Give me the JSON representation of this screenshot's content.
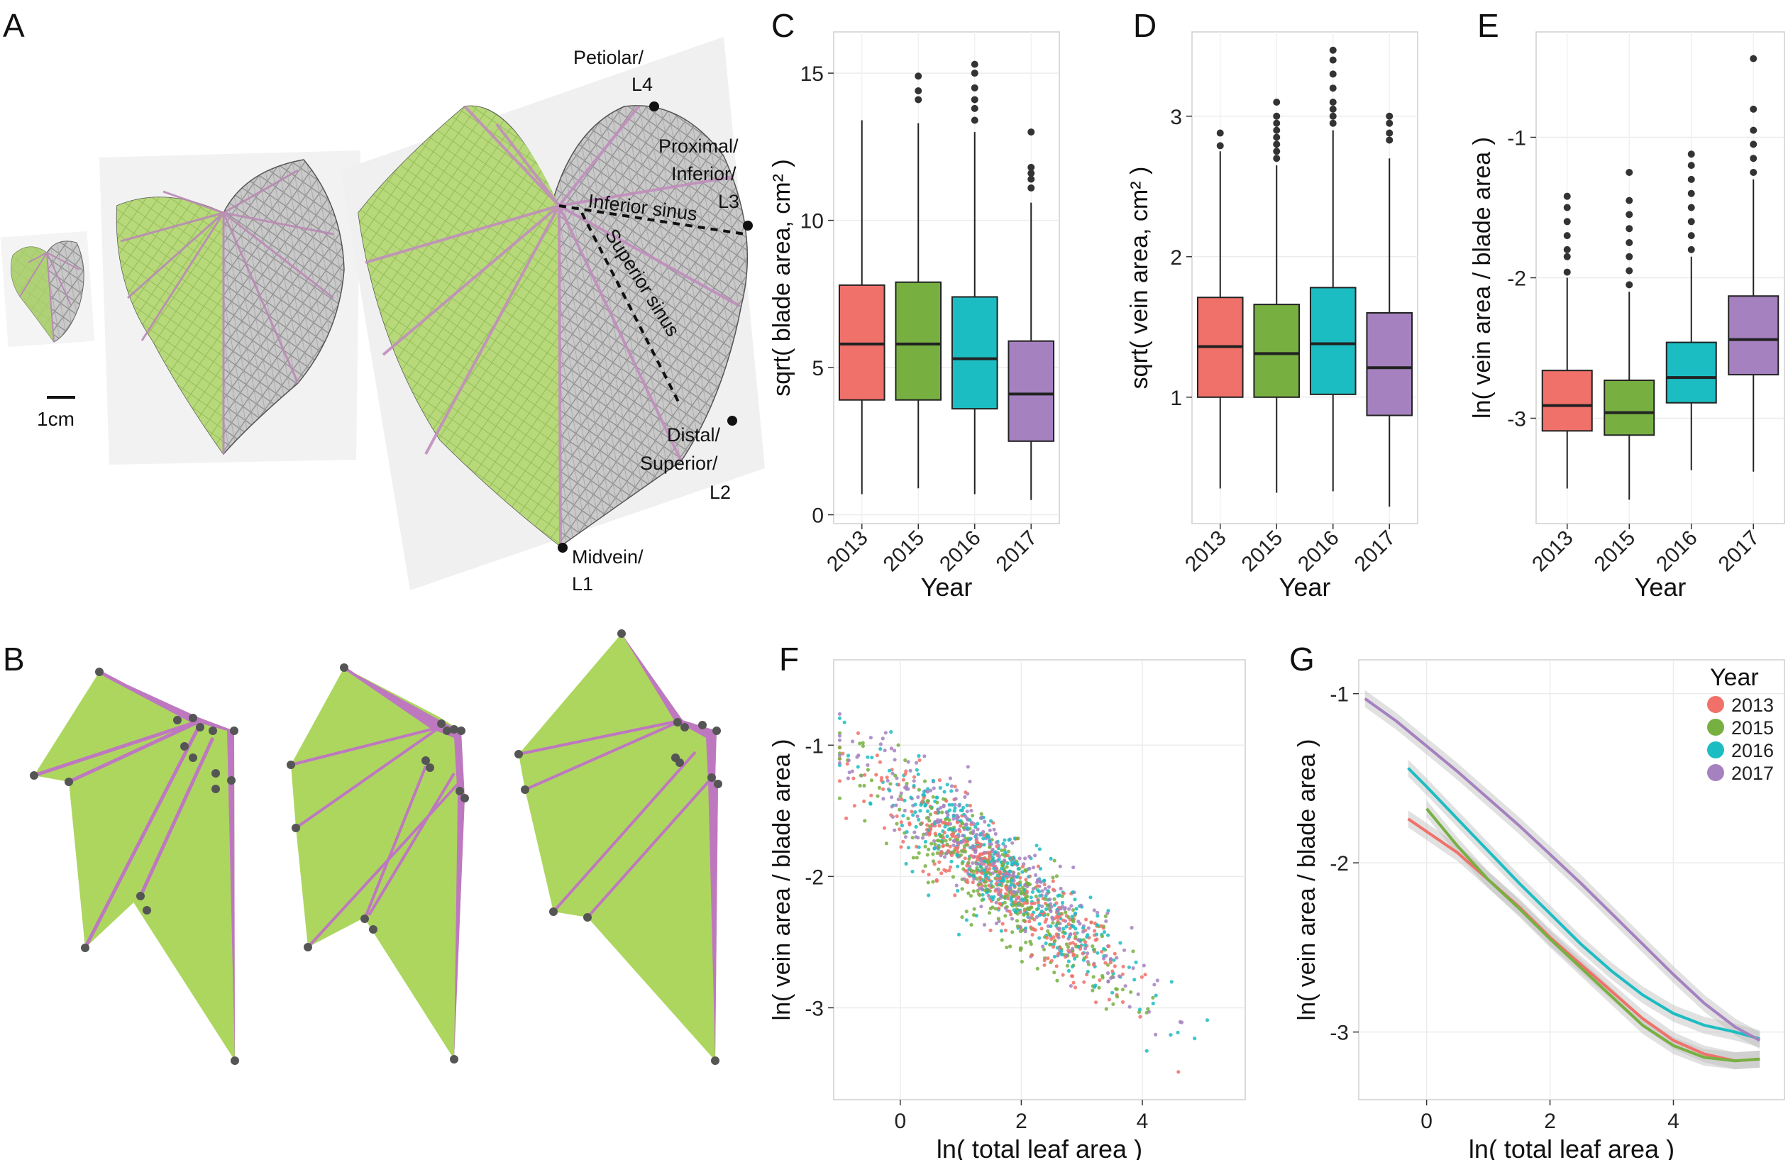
{
  "panel_labels": {
    "A": "A",
    "B": "B",
    "C": "C",
    "D": "D",
    "E": "E",
    "F": "F",
    "G": "G"
  },
  "panel_a": {
    "scale_bar_label": "1cm",
    "annotations": {
      "petiolar_1": "Petiolar/",
      "petiolar_2": "L4",
      "proximal_1": "Proximal/",
      "proximal_2": "Inferior/",
      "proximal_3": "L3",
      "distal_1": "Distal/",
      "distal_2": "Superior/",
      "distal_3": "L2",
      "midvein_1": "Midvein/",
      "midvein_2": "L1",
      "inferior_sinus": "Inferior sinus",
      "superior_sinus": "Superior sinus"
    }
  },
  "colors": {
    "y2013": "#F0716A",
    "y2015": "#77B041",
    "y2016": "#1CBDC2",
    "y2017": "#A581C0",
    "leaf_green": "#ADD65F",
    "vein_purple": "#BE78C0",
    "landmark": "#555555"
  },
  "chart_data": [
    {
      "panel": "C",
      "type": "box",
      "categories": [
        "2013",
        "2015",
        "2016",
        "2017"
      ],
      "xlabel": "Year",
      "ylabel": "sqrt( blade area, cm² )",
      "ylim": [
        -0.3,
        16.4
      ],
      "yticks": [
        0,
        5,
        10,
        15
      ],
      "ytick_labels": [
        "0",
        "5",
        "10",
        "15"
      ],
      "boxes": [
        {
          "min": 0.7,
          "q1": 3.9,
          "median": 5.8,
          "q3": 7.8,
          "max": 13.4,
          "outliers": []
        },
        {
          "min": 0.9,
          "q1": 3.9,
          "median": 5.8,
          "q3": 7.9,
          "max": 13.3,
          "outliers": [
            14.1,
            14.4,
            14.9
          ]
        },
        {
          "min": 0.7,
          "q1": 3.6,
          "median": 5.3,
          "q3": 7.4,
          "max": 13.0,
          "outliers": [
            13.4,
            13.8,
            14.1,
            14.5,
            15.0,
            15.3
          ]
        },
        {
          "min": 0.5,
          "q1": 2.5,
          "median": 4.1,
          "q3": 5.9,
          "max": 10.6,
          "outliers": [
            11.1,
            11.4,
            11.6,
            11.8,
            13.0
          ]
        }
      ]
    },
    {
      "panel": "D",
      "type": "box",
      "categories": [
        "2013",
        "2015",
        "2016",
        "2017"
      ],
      "xlabel": "Year",
      "ylabel": "sqrt( vein area, cm² )",
      "ylim": [
        0.1,
        3.6
      ],
      "yticks": [
        1,
        2,
        3
      ],
      "ytick_labels": [
        "1",
        "2",
        "3"
      ],
      "boxes": [
        {
          "min": 0.35,
          "q1": 1.0,
          "median": 1.36,
          "q3": 1.71,
          "max": 2.75,
          "outliers": [
            2.79,
            2.88
          ]
        },
        {
          "min": 0.32,
          "q1": 1.0,
          "median": 1.31,
          "q3": 1.66,
          "max": 2.65,
          "outliers": [
            2.7,
            2.75,
            2.8,
            2.85,
            2.9,
            2.95,
            3.0,
            3.1
          ]
        },
        {
          "min": 0.33,
          "q1": 1.02,
          "median": 1.38,
          "q3": 1.78,
          "max": 2.9,
          "outliers": [
            2.95,
            3.0,
            3.05,
            3.1,
            3.2,
            3.3,
            3.4,
            3.47
          ]
        },
        {
          "min": 0.22,
          "q1": 0.87,
          "median": 1.21,
          "q3": 1.6,
          "max": 2.7,
          "outliers": [
            2.83,
            2.88,
            2.95,
            3.0
          ]
        }
      ]
    },
    {
      "panel": "E",
      "type": "box",
      "categories": [
        "2013",
        "2015",
        "2016",
        "2017"
      ],
      "xlabel": "Year",
      "ylabel": "ln( vein area / blade area )",
      "ylim": [
        -3.75,
        -0.25
      ],
      "yticks": [
        -3,
        -2,
        -1
      ],
      "ytick_labels": [
        "-3",
        "-2",
        "-1"
      ],
      "boxes": [
        {
          "min": -3.5,
          "q1": -3.09,
          "median": -2.91,
          "q3": -2.66,
          "max": -2.0,
          "outliers": [
            -1.96,
            -1.85,
            -1.8,
            -1.7,
            -1.6,
            -1.5,
            -1.42
          ]
        },
        {
          "min": -3.58,
          "q1": -3.12,
          "median": -2.96,
          "q3": -2.73,
          "max": -2.1,
          "outliers": [
            -2.05,
            -1.95,
            -1.85,
            -1.75,
            -1.65,
            -1.55,
            -1.45,
            -1.25
          ]
        },
        {
          "min": -3.37,
          "q1": -2.89,
          "median": -2.71,
          "q3": -2.46,
          "max": -1.85,
          "outliers": [
            -1.8,
            -1.7,
            -1.6,
            -1.5,
            -1.4,
            -1.3,
            -1.2,
            -1.12
          ]
        },
        {
          "min": -3.38,
          "q1": -2.69,
          "median": -2.44,
          "q3": -2.13,
          "max": -1.3,
          "outliers": [
            -1.25,
            -1.15,
            -1.05,
            -0.95,
            -0.8,
            -0.44
          ]
        }
      ]
    },
    {
      "panel": "F",
      "type": "scatter",
      "xlabel": "ln( total leaf area )",
      "ylabel": "ln( vein area / blade area )",
      "xlim": [
        -1.1,
        5.7
      ],
      "ylim": [
        -3.7,
        -0.35
      ],
      "xticks": [
        0,
        2,
        4
      ],
      "xtick_labels": [
        "0",
        "2",
        "4"
      ],
      "yticks": [
        -3,
        -2,
        -1
      ],
      "ytick_labels": [
        "-3",
        "-2",
        "-1"
      ],
      "series_order": [
        "2013",
        "2015",
        "2016",
        "2017"
      ],
      "relationship": {
        "x_range": [
          -1,
          5.4
        ],
        "slope": -0.37,
        "intercept": -1.4,
        "spread_sd": 0.18
      }
    },
    {
      "panel": "G",
      "type": "line",
      "xlabel": "ln( total leaf area )",
      "ylabel": "ln( vein area / blade area )",
      "xlim": [
        -1.1,
        5.8
      ],
      "ylim": [
        -3.4,
        -0.8
      ],
      "xticks": [
        0,
        2,
        4
      ],
      "xtick_labels": [
        "0",
        "2",
        "4"
      ],
      "yticks": [
        -3,
        -2,
        -1
      ],
      "ytick_labels": [
        "-3",
        "-2",
        "-1"
      ],
      "legend": {
        "title": "Year",
        "position": "top-right"
      },
      "series": [
        {
          "name": "2013",
          "x": [
            -0.3,
            0.5,
            1.0,
            1.5,
            2.0,
            2.5,
            3.0,
            3.5,
            4.0,
            4.5,
            5.0,
            5.4
          ],
          "y": [
            -1.74,
            -1.94,
            -2.1,
            -2.26,
            -2.44,
            -2.6,
            -2.76,
            -2.92,
            -3.05,
            -3.13,
            -3.17,
            -3.16
          ]
        },
        {
          "name": "2015",
          "x": [
            0.0,
            0.5,
            1.0,
            1.5,
            2.0,
            2.5,
            3.0,
            3.5,
            4.0,
            4.5,
            5.0,
            5.4
          ],
          "y": [
            -1.68,
            -1.9,
            -2.1,
            -2.27,
            -2.45,
            -2.62,
            -2.79,
            -2.96,
            -3.08,
            -3.15,
            -3.17,
            -3.16
          ]
        },
        {
          "name": "2016",
          "x": [
            -0.3,
            0.0,
            0.5,
            1.0,
            1.5,
            2.0,
            2.5,
            3.0,
            3.5,
            4.0,
            4.5,
            5.0,
            5.4
          ],
          "y": [
            -1.44,
            -1.55,
            -1.74,
            -1.93,
            -2.12,
            -2.3,
            -2.48,
            -2.64,
            -2.78,
            -2.89,
            -2.96,
            -3.0,
            -3.04
          ]
        },
        {
          "name": "2017",
          "x": [
            -1.0,
            -0.5,
            0.0,
            0.5,
            1.0,
            1.5,
            2.0,
            2.5,
            3.0,
            3.5,
            4.0,
            4.5,
            5.0,
            5.4
          ],
          "y": [
            -1.03,
            -1.16,
            -1.31,
            -1.46,
            -1.62,
            -1.78,
            -1.95,
            -2.12,
            -2.3,
            -2.48,
            -2.66,
            -2.83,
            -2.97,
            -3.05
          ]
        }
      ]
    }
  ]
}
